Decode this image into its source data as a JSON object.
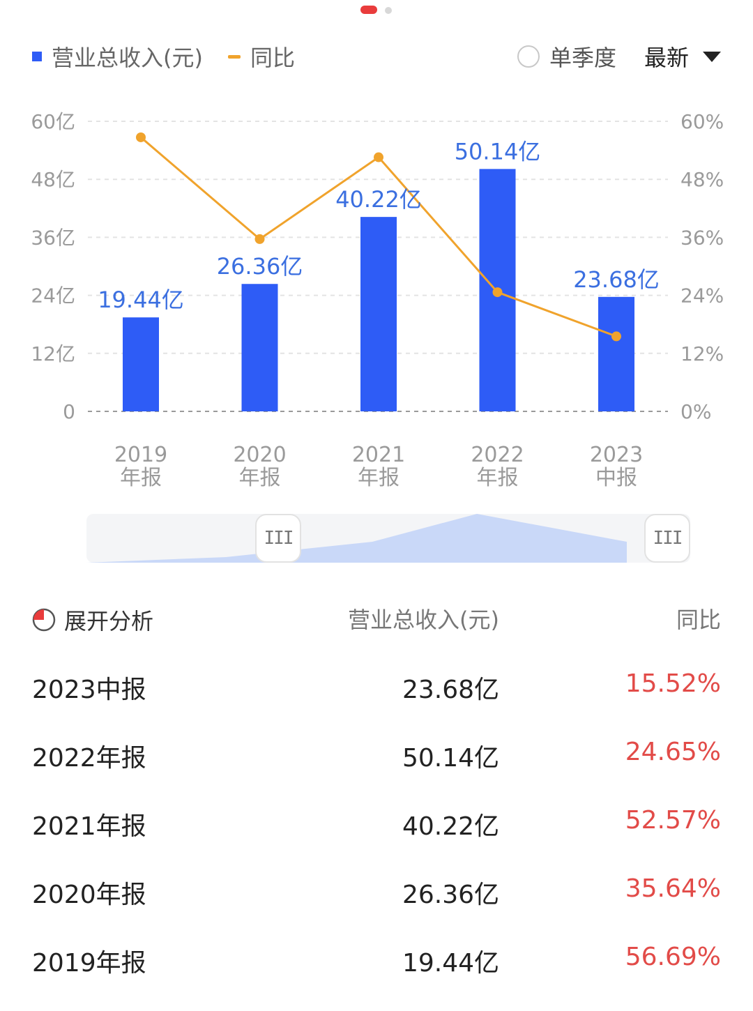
{
  "legend": {
    "revenue_label": "营业总收入(元)",
    "yoy_label": "同比"
  },
  "controls": {
    "quarter_label": "单季度",
    "sort_label": "最新"
  },
  "colors": {
    "bar": "#2e5cf6",
    "yoy_line": "#f0a32c",
    "positive": "#e24b48",
    "active_dot": "#e93c3c"
  },
  "chart_data": {
    "type": "bar",
    "categories": [
      "2019年报",
      "2020年报",
      "2021年报",
      "2022年报",
      "2023中报"
    ],
    "x_tick_labels": [
      [
        "2019",
        "年报"
      ],
      [
        "2020",
        "年报"
      ],
      [
        "2021",
        "年报"
      ],
      [
        "2022",
        "年报"
      ],
      [
        "2023",
        "中报"
      ]
    ],
    "series": [
      {
        "name": "营业总收入(元)",
        "unit": "亿",
        "values": [
          19.44,
          26.36,
          40.22,
          50.14,
          23.68
        ],
        "value_labels": [
          "19.44亿",
          "26.36亿",
          "40.22亿",
          "50.14亿",
          "23.68亿"
        ]
      },
      {
        "name": "同比",
        "type": "line",
        "axis": "right",
        "unit": "%",
        "values": [
          56.69,
          35.64,
          52.57,
          24.65,
          15.52
        ]
      }
    ],
    "ylim": [
      0,
      60
    ],
    "y2lim": [
      0,
      60
    ],
    "y_ticks": [
      "0",
      "12亿",
      "24亿",
      "36亿",
      "48亿",
      "60亿"
    ],
    "y2_ticks": [
      "0%",
      "12%",
      "24%",
      "36%",
      "48%",
      "60%"
    ],
    "grid": true,
    "legend": "top-left"
  },
  "table": {
    "header": {
      "analysis": "展开分析",
      "revenue": "营业总收入(元)",
      "yoy": "同比"
    },
    "rows": [
      {
        "period": "2023中报",
        "revenue": "23.68亿",
        "yoy": "15.52%"
      },
      {
        "period": "2022年报",
        "revenue": "50.14亿",
        "yoy": "24.65%"
      },
      {
        "period": "2021年报",
        "revenue": "40.22亿",
        "yoy": "52.57%"
      },
      {
        "period": "2020年报",
        "revenue": "26.36亿",
        "yoy": "35.64%"
      },
      {
        "period": "2019年报",
        "revenue": "19.44亿",
        "yoy": "56.69%"
      }
    ]
  }
}
